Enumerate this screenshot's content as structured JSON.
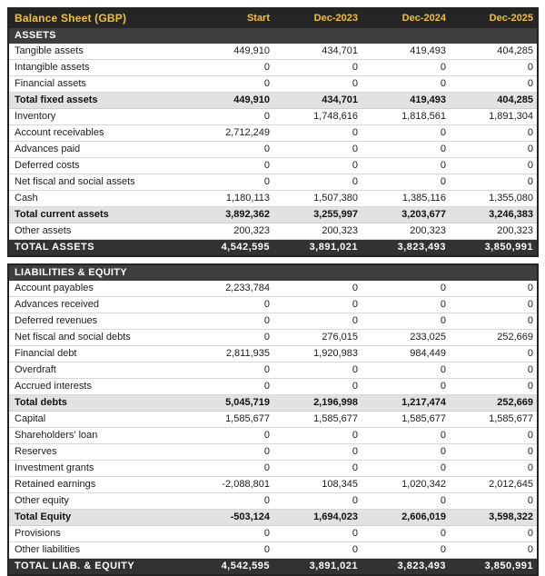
{
  "chart_data": {
    "type": "table",
    "title": "Balance Sheet (GBP)",
    "columns": [
      "Start",
      "Dec-2023",
      "Dec-2024",
      "Dec-2025"
    ],
    "sections": [
      {
        "name": "ASSETS",
        "rows": [
          {
            "label": "Tangible assets",
            "values": [
              "449,910",
              "434,701",
              "419,493",
              "404,285"
            ],
            "style": "normal"
          },
          {
            "label": "Intangible assets",
            "values": [
              "0",
              "0",
              "0",
              "0"
            ],
            "style": "normal"
          },
          {
            "label": "Financial assets",
            "values": [
              "0",
              "0",
              "0",
              "0"
            ],
            "style": "normal"
          },
          {
            "label": "Total fixed assets",
            "values": [
              "449,910",
              "434,701",
              "419,493",
              "404,285"
            ],
            "style": "subtotal"
          },
          {
            "label": "Inventory",
            "values": [
              "0",
              "1,748,616",
              "1,818,561",
              "1,891,304"
            ],
            "style": "normal"
          },
          {
            "label": "Account receivables",
            "values": [
              "2,712,249",
              "0",
              "0",
              "0"
            ],
            "style": "normal"
          },
          {
            "label": "Advances paid",
            "values": [
              "0",
              "0",
              "0",
              "0"
            ],
            "style": "normal"
          },
          {
            "label": "Deferred costs",
            "values": [
              "0",
              "0",
              "0",
              "0"
            ],
            "style": "normal"
          },
          {
            "label": "Net fiscal and social assets",
            "values": [
              "0",
              "0",
              "0",
              "0"
            ],
            "style": "normal"
          },
          {
            "label": "Cash",
            "values": [
              "1,180,113",
              "1,507,380",
              "1,385,116",
              "1,355,080"
            ],
            "style": "normal"
          },
          {
            "label": "Total current assets",
            "values": [
              "3,892,362",
              "3,255,997",
              "3,203,677",
              "3,246,383"
            ],
            "style": "subtotal"
          },
          {
            "label": "Other assets",
            "values": [
              "200,323",
              "200,323",
              "200,323",
              "200,323"
            ],
            "style": "normal"
          }
        ],
        "total": {
          "label": "TOTAL ASSETS",
          "values": [
            "4,542,595",
            "3,891,021",
            "3,823,493",
            "3,850,991"
          ]
        }
      },
      {
        "name": "LIABILITIES & EQUITY",
        "rows": [
          {
            "label": "Account payables",
            "values": [
              "2,233,784",
              "0",
              "0",
              "0"
            ],
            "style": "normal"
          },
          {
            "label": "Advances received",
            "values": [
              "0",
              "0",
              "0",
              "0"
            ],
            "style": "normal"
          },
          {
            "label": "Deferred revenues",
            "values": [
              "0",
              "0",
              "0",
              "0"
            ],
            "style": "normal"
          },
          {
            "label": "Net fiscal and social debts",
            "values": [
              "0",
              "276,015",
              "233,025",
              "252,669"
            ],
            "style": "normal"
          },
          {
            "label": "Financial debt",
            "values": [
              "2,811,935",
              "1,920,983",
              "984,449",
              "0"
            ],
            "style": "normal"
          },
          {
            "label": "Overdraft",
            "values": [
              "0",
              "0",
              "0",
              "0"
            ],
            "style": "normal"
          },
          {
            "label": "Accrued interests",
            "values": [
              "0",
              "0",
              "0",
              "0"
            ],
            "style": "normal"
          },
          {
            "label": "Total debts",
            "values": [
              "5,045,719",
              "2,196,998",
              "1,217,474",
              "252,669"
            ],
            "style": "subtotal"
          },
          {
            "label": "Capital",
            "values": [
              "1,585,677",
              "1,585,677",
              "1,585,677",
              "1,585,677"
            ],
            "style": "normal"
          },
          {
            "label": "Shareholders' loan",
            "values": [
              "0",
              "0",
              "0",
              "0"
            ],
            "style": "normal"
          },
          {
            "label": "Reserves",
            "values": [
              "0",
              "0",
              "0",
              "0"
            ],
            "style": "normal"
          },
          {
            "label": "Investment grants",
            "values": [
              "0",
              "0",
              "0",
              "0"
            ],
            "style": "normal"
          },
          {
            "label": "Retained earnings",
            "values": [
              "-2,088,801",
              "108,345",
              "1,020,342",
              "2,012,645"
            ],
            "style": "normal"
          },
          {
            "label": "Other equity",
            "values": [
              "0",
              "0",
              "0",
              "0"
            ],
            "style": "normal"
          },
          {
            "label": "Total Equity",
            "values": [
              "-503,124",
              "1,694,023",
              "2,606,019",
              "3,598,322"
            ],
            "style": "subtotal"
          },
          {
            "label": "Provisions",
            "values": [
              "0",
              "0",
              "0",
              "0"
            ],
            "style": "normal"
          },
          {
            "label": "Other liabilities",
            "values": [
              "0",
              "0",
              "0",
              "0"
            ],
            "style": "normal"
          }
        ],
        "total": {
          "label": "TOTAL LIAB. & EQUITY",
          "values": [
            "4,542,595",
            "3,891,021",
            "3,823,493",
            "3,850,991"
          ]
        }
      }
    ]
  },
  "colors": {
    "accent_yellow": "#f1c232",
    "title_bar_bg": "#252525",
    "section_header_bg": "#3e3e3e",
    "grand_total_bg": "#323232",
    "subtotal_bg": "#e2e2e2",
    "row_border": "#d9d9d9"
  }
}
